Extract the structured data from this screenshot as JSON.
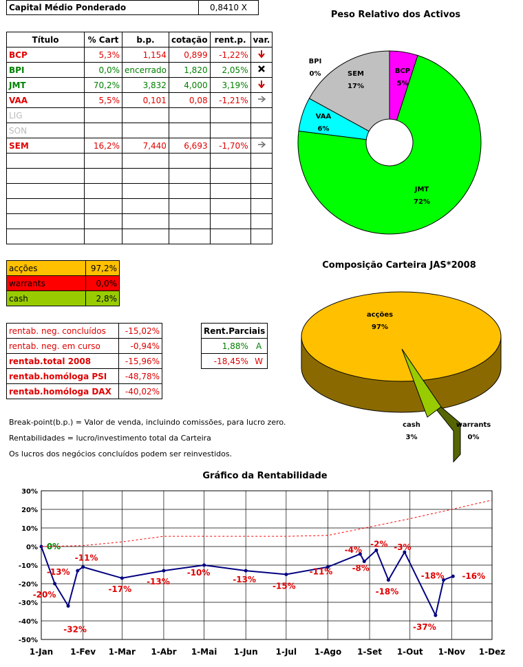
{
  "capital": {
    "label": "Capital Médio Ponderado",
    "value": "0,8410 X"
  },
  "holdings": {
    "headers": [
      "Título",
      "% Cart",
      "b.p.",
      "cotação",
      "rent.p.",
      "var."
    ],
    "rows": [
      {
        "titulo": "BCP",
        "cart": "5,3%",
        "bp": "1,154",
        "cot": "0,899",
        "rent": "-1,22%",
        "var": "down",
        "color": "red"
      },
      {
        "titulo": "BPI",
        "cart": "0,0%",
        "bp": "encerrado",
        "cot": "1,820",
        "rent": "2,05%",
        "var": "closed",
        "color": "green"
      },
      {
        "titulo": "JMT",
        "cart": "70,2%",
        "bp": "3,832",
        "cot": "4,000",
        "rent": "3,19%",
        "var": "down",
        "color": "green"
      },
      {
        "titulo": "VAA",
        "cart": "5,5%",
        "bp": "0,101",
        "cot": "0,08",
        "rent": "-1,21%",
        "var": "right",
        "color": "red"
      },
      {
        "titulo": "LIG",
        "cart": "",
        "bp": "",
        "cot": "",
        "rent": "",
        "var": "",
        "color": "grey"
      },
      {
        "titulo": "SON",
        "cart": "",
        "bp": "",
        "cot": "",
        "rent": "",
        "var": "",
        "color": "grey"
      },
      {
        "titulo": "SEM",
        "cart": "16,2%",
        "bp": "7,440",
        "cot": "6,693",
        "rent": "-1,70%",
        "var": "right",
        "color": "red"
      }
    ]
  },
  "composition": [
    {
      "label": "acções",
      "value": "97,2%",
      "bg": "#ffc000"
    },
    {
      "label": "warrants",
      "value": "0,0%",
      "bg": "#ff0000"
    },
    {
      "label": "cash",
      "value": "2,8%",
      "bg": "#99cc00"
    }
  ],
  "rentab": [
    {
      "label": "rentab. neg. concluídos",
      "value": "-15,02%",
      "bold": false
    },
    {
      "label": "rentab. neg. em curso",
      "value": "-0,94%",
      "bold": false
    },
    {
      "label": "rentab.total 2008",
      "value": "-15,96%",
      "bold": true
    },
    {
      "label": "rentab.homóloga PSI",
      "value": "-48,78%",
      "bold": true
    },
    {
      "label": "rentab.homóloga DAX",
      "value": "-40,02%",
      "bold": true
    }
  ],
  "parciais": {
    "header": "Rent.Parciais",
    "rows": [
      {
        "value": "1,88%",
        "tag": "A",
        "color": "green"
      },
      {
        "value": "-18,45%",
        "tag": "W",
        "color": "red"
      }
    ]
  },
  "notes": [
    "Break-point(b.p.) = Valor de venda, incluindo comissões, para lucro zero.",
    "Rentabilidades = lucro/investimento total da Carteira",
    "Os lucros dos negócios concluídos podem ser reinvestidos."
  ],
  "chart_data": [
    {
      "type": "pie",
      "title": "Peso Relativo dos Activos",
      "labels": [
        "BCP",
        "JMT",
        "VAA",
        "SEM",
        "BPI"
      ],
      "values": [
        5,
        72,
        6,
        17,
        0
      ],
      "value_labels": [
        "5%",
        "72%",
        "6%",
        "17%",
        "0%"
      ],
      "colors": [
        "#ff00ff",
        "#00ff00",
        "#00ffff",
        "#c0c0c0",
        "#000000"
      ]
    },
    {
      "type": "pie",
      "title": "Composição Carteira JAS*2008",
      "labels": [
        "acções",
        "cash",
        "warrants"
      ],
      "values": [
        97,
        3,
        0
      ],
      "value_labels": [
        "97%",
        "3%",
        "0%"
      ],
      "colors": [
        "#ffc000",
        "#99cc00",
        "#ff0000"
      ]
    },
    {
      "type": "line",
      "title": "Gráfico da Rentabilidade",
      "x_ticks": [
        "1-Jan",
        "1-Fev",
        "1-Mar",
        "1-Abr",
        "1-Mai",
        "1-Jun",
        "1-Jul",
        "1-Ago",
        "1-Set",
        "1-Out",
        "1-Nov",
        "1-Dez"
      ],
      "y_ticks": [
        "30%",
        "20%",
        "10%",
        "0%",
        "-10%",
        "-20%",
        "-30%",
        "-40%",
        "-50%"
      ],
      "ylim": [
        -50,
        30
      ],
      "grid": true,
      "series": [
        {
          "color": "#000080",
          "points": [
            {
              "x": "2008-01-01",
              "y": 0
            },
            {
              "x": "2008-01-11",
              "y": -20
            },
            {
              "x": "2008-01-21",
              "y": -32
            },
            {
              "x": "2008-01-28",
              "y": -13
            },
            {
              "x": "2008-02-01",
              "y": -11
            },
            {
              "x": "2008-03-01",
              "y": -17
            },
            {
              "x": "2008-04-01",
              "y": -13
            },
            {
              "x": "2008-05-01",
              "y": -10
            },
            {
              "x": "2008-06-01",
              "y": -13
            },
            {
              "x": "2008-07-01",
              "y": -15
            },
            {
              "x": "2008-08-01",
              "y": -11
            },
            {
              "x": "2008-08-25",
              "y": -4
            },
            {
              "x": "2008-08-28",
              "y": -8
            },
            {
              "x": "2008-09-06",
              "y": -2
            },
            {
              "x": "2008-09-15",
              "y": -18
            },
            {
              "x": "2008-09-27",
              "y": -3
            },
            {
              "x": "2008-10-20",
              "y": -37
            },
            {
              "x": "2008-10-26",
              "y": -18
            },
            {
              "x": "2008-11-02",
              "y": -16
            }
          ],
          "point_labels": [
            {
              "x": "2008-01-01",
              "text": "0%",
              "color": "green"
            },
            {
              "x": "2008-01-11",
              "text": "-20%",
              "color": "red"
            },
            {
              "x": "2008-01-21",
              "text": "-32%",
              "color": "red"
            },
            {
              "x": "2008-01-28",
              "text": "-13%",
              "color": "red"
            },
            {
              "x": "2008-02-01",
              "text": "-11%",
              "color": "red"
            },
            {
              "x": "2008-03-01",
              "text": "-17%",
              "color": "red"
            },
            {
              "x": "2008-04-01",
              "text": "-13%",
              "color": "red"
            },
            {
              "x": "2008-05-01",
              "text": "-10%",
              "color": "red"
            },
            {
              "x": "2008-06-01",
              "text": "-13%",
              "color": "red"
            },
            {
              "x": "2008-07-01",
              "text": "-15%",
              "color": "red"
            },
            {
              "x": "2008-08-01",
              "text": "-11%",
              "color": "red"
            },
            {
              "x": "2008-08-25",
              "text": "-4%",
              "color": "red"
            },
            {
              "x": "2008-08-28",
              "text": "-8%",
              "color": "red"
            },
            {
              "x": "2008-09-06",
              "text": "-2%",
              "color": "red"
            },
            {
              "x": "2008-09-15",
              "text": "-18%",
              "color": "red"
            },
            {
              "x": "2008-09-27",
              "text": "-3%",
              "color": "red"
            },
            {
              "x": "2008-10-20",
              "text": "-37%",
              "color": "red"
            },
            {
              "x": "2008-10-26",
              "text": "-18%",
              "color": "red"
            },
            {
              "x": "2008-11-02",
              "text": "-16%",
              "color": "red"
            }
          ]
        },
        {
          "color": "#ff0000",
          "dashed": true,
          "points": [
            {
              "x": "2008-01-01",
              "y": 0
            },
            {
              "x": "2008-02-01",
              "y": 0.5
            },
            {
              "x": "2008-03-01",
              "y": 2.5
            },
            {
              "x": "2008-04-01",
              "y": 5.5
            },
            {
              "x": "2008-05-01",
              "y": 5.5
            },
            {
              "x": "2008-06-01",
              "y": 5.5
            },
            {
              "x": "2008-07-01",
              "y": 5.5
            },
            {
              "x": "2008-08-01",
              "y": 6
            },
            {
              "x": "2008-09-01",
              "y": 10.5
            },
            {
              "x": "2008-10-01",
              "y": 15
            },
            {
              "x": "2008-11-01",
              "y": 20
            },
            {
              "x": "2008-12-01",
              "y": 25
            }
          ]
        }
      ]
    }
  ]
}
